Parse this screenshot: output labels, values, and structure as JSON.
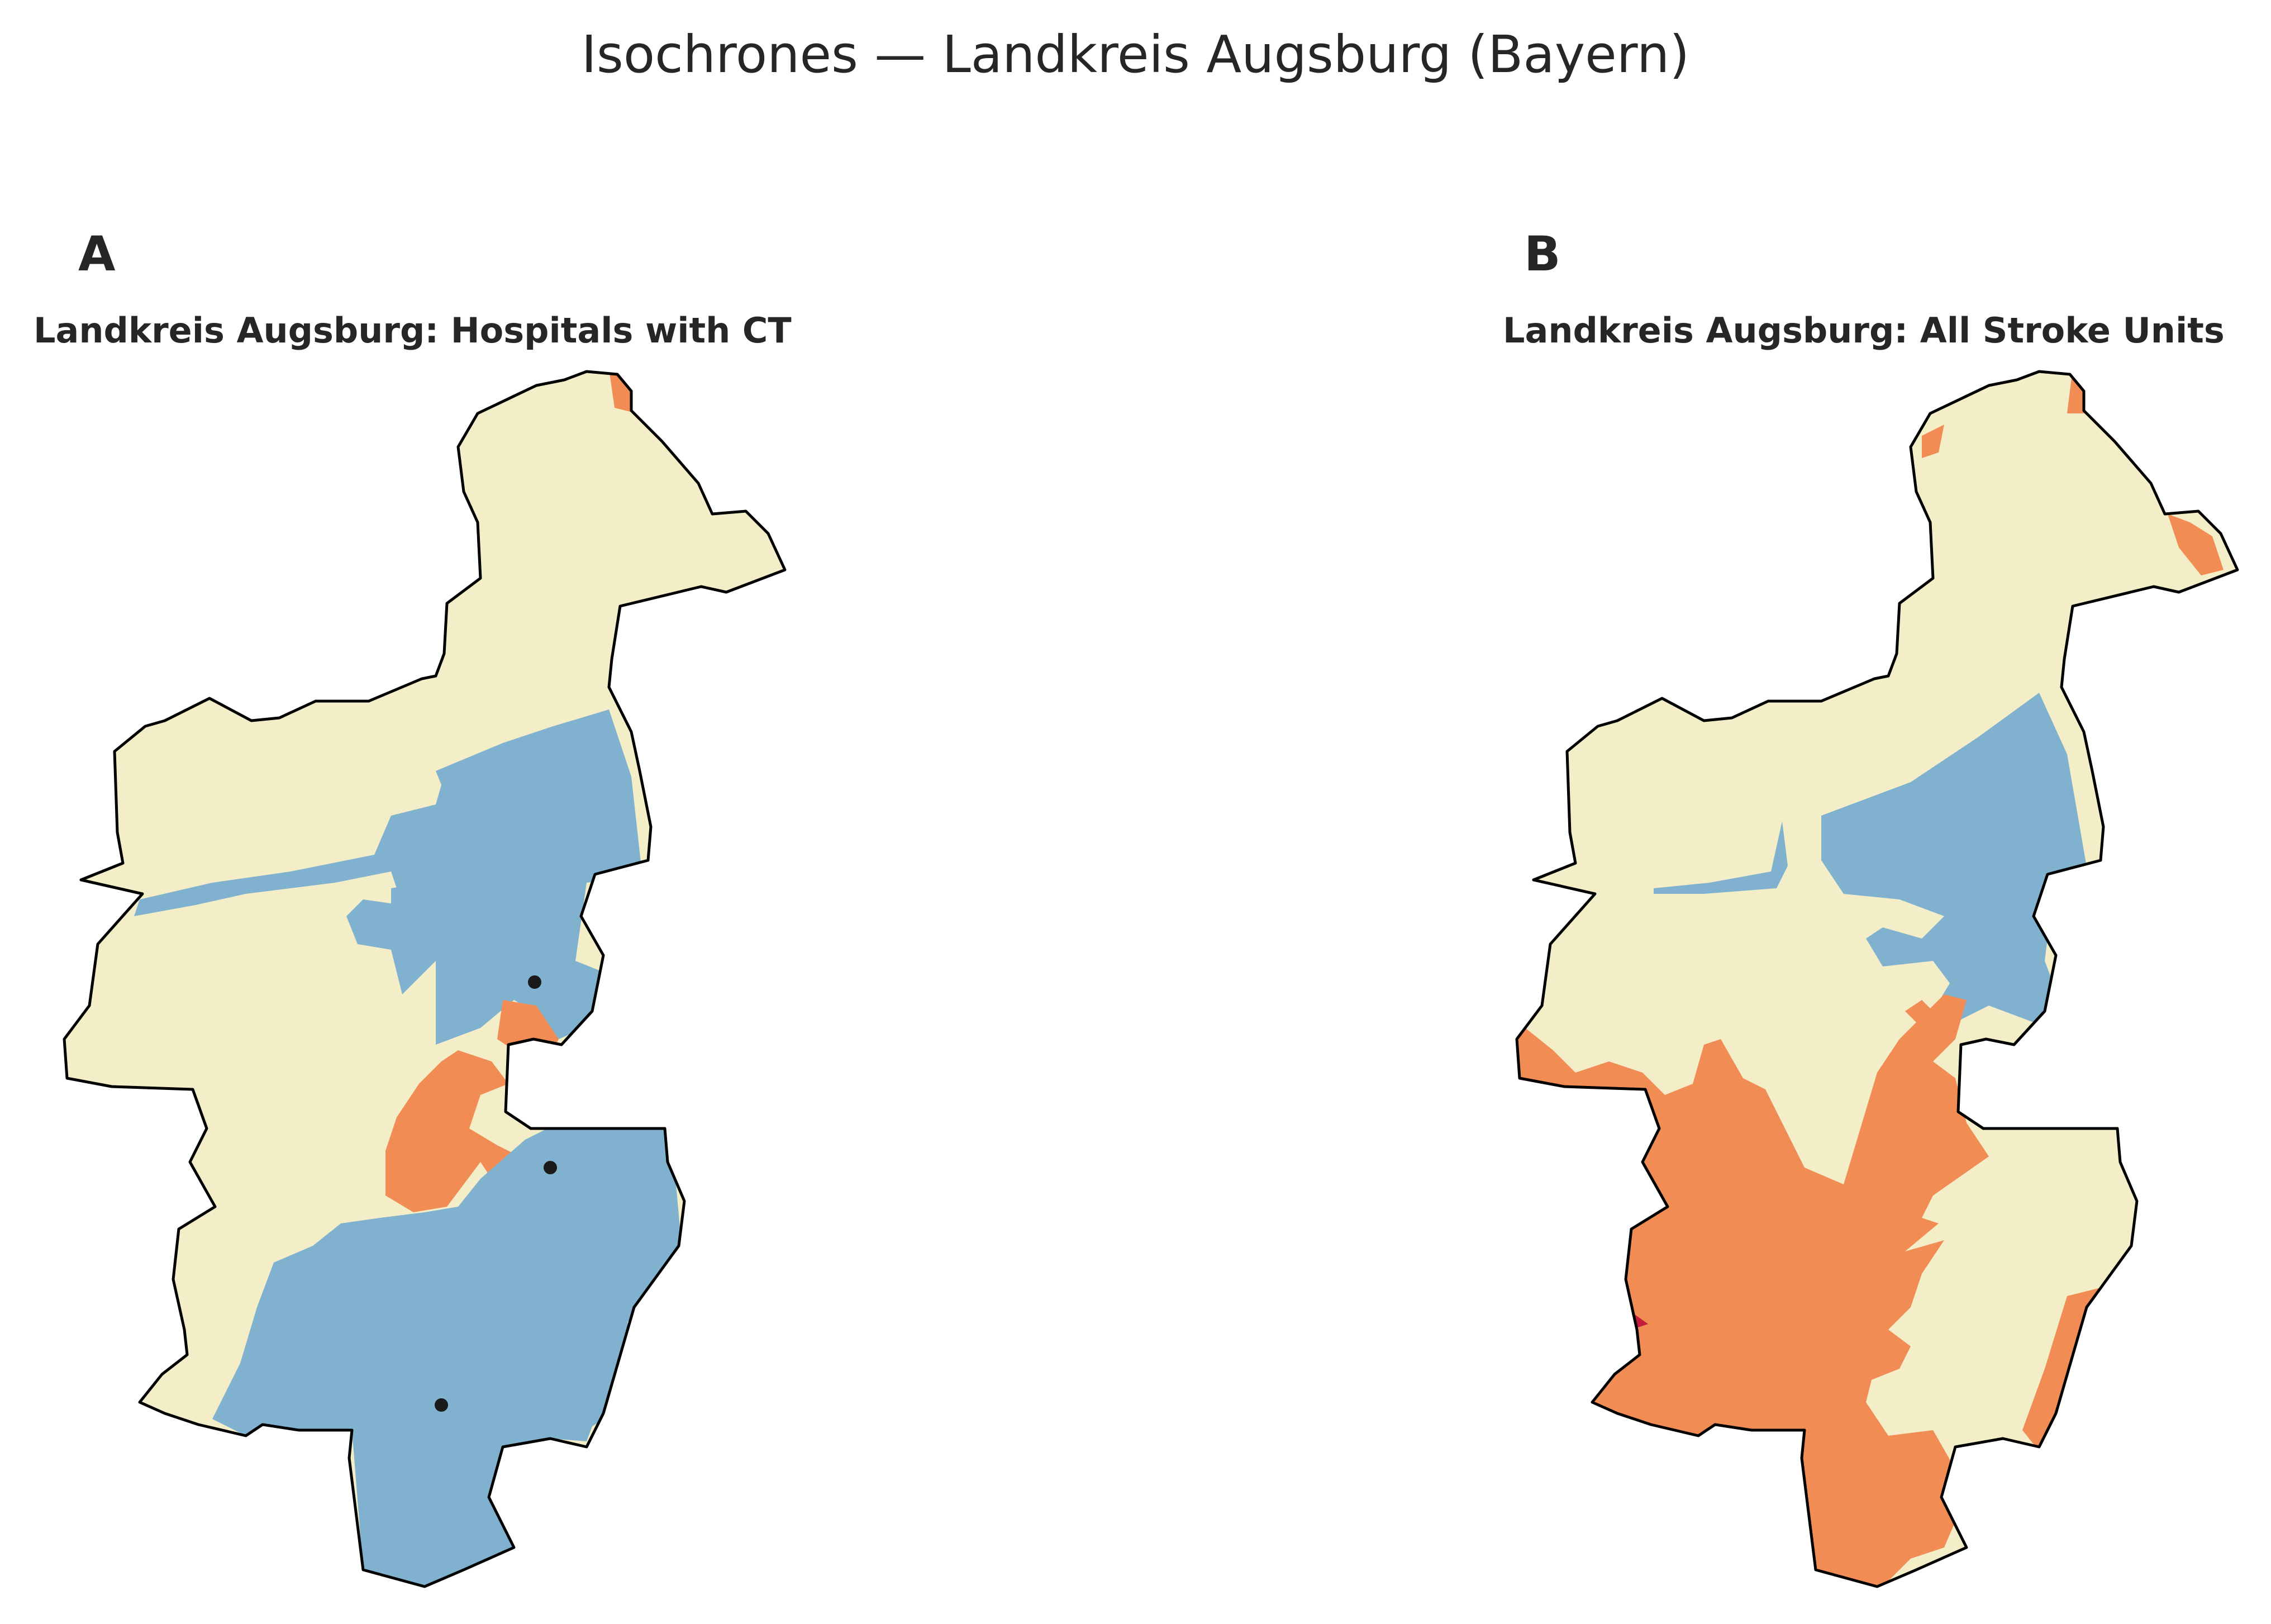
{
  "figure": {
    "title": "Isochrones — Landkreis Augsburg (Bayern)"
  },
  "panels": [
    {
      "letter": "A",
      "title": "Landkreis Augsburg: Hospitals with CT",
      "zones": [
        {
          "color": "#f3eec8"
        },
        {
          "color": "#80b2d0"
        },
        {
          "color": "#f18c55"
        }
      ],
      "markers": 3
    },
    {
      "letter": "B",
      "title": "Landkreis Augsburg: All Stroke Units",
      "zones": [
        {
          "color": "#f3eec8"
        },
        {
          "color": "#80b2d0"
        },
        {
          "color": "#f18c55"
        },
        {
          "color": "#c51b3d"
        }
      ],
      "markers": 0
    }
  ],
  "colors": {
    "outline": "#000000",
    "marker": "#1a1a1a",
    "text": "#262626"
  }
}
